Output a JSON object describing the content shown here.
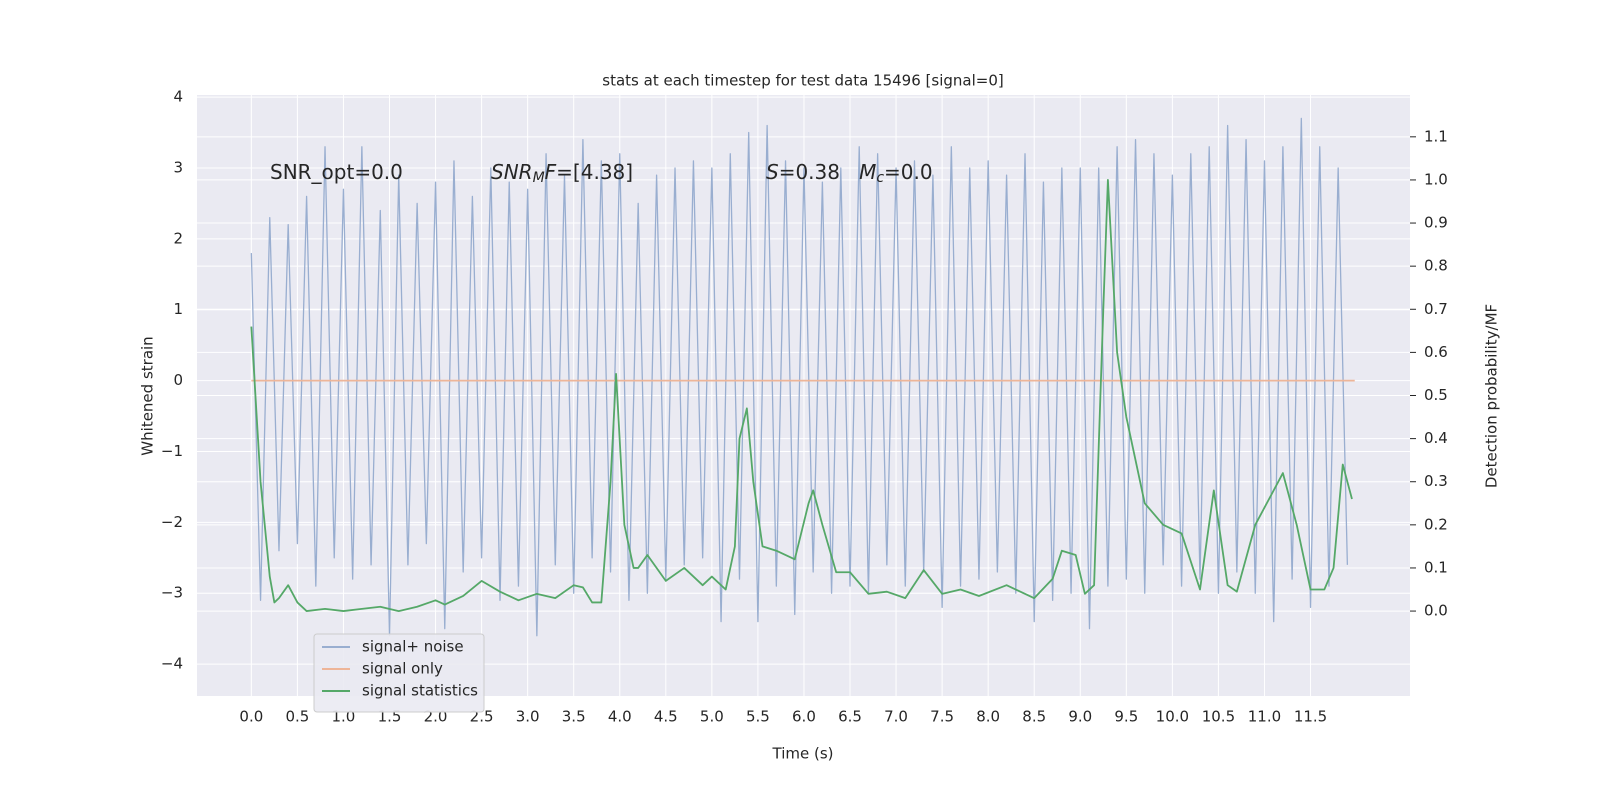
{
  "chart_data": {
    "type": "line",
    "title": "stats at each timestep for test data 15496 [signal=0]",
    "x_label": "Time (s)",
    "y_label": "Whitened strain",
    "y2_label": "Detection probability/MF",
    "xlim": [
      -0.59,
      12.58
    ],
    "ylim": [
      -4.45,
      4.03
    ],
    "y2lim": [
      -0.197,
      1.197
    ],
    "xticks": [
      {
        "value": 0,
        "label": "0.0"
      },
      {
        "value": 0.5,
        "label": "0.5"
      },
      {
        "value": 1,
        "label": "1.0"
      },
      {
        "value": 1.5,
        "label": "1.5"
      },
      {
        "value": 2,
        "label": "2.0"
      },
      {
        "value": 2.5,
        "label": "2.5"
      },
      {
        "value": 3,
        "label": "3.0"
      },
      {
        "value": 3.5,
        "label": "3.5"
      },
      {
        "value": 4,
        "label": "4.0"
      },
      {
        "value": 4.5,
        "label": "4.5"
      },
      {
        "value": 5,
        "label": "5.0"
      },
      {
        "value": 5.5,
        "label": "5.5"
      },
      {
        "value": 6,
        "label": "6.0"
      },
      {
        "value": 6.5,
        "label": "6.5"
      },
      {
        "value": 7,
        "label": "7.0"
      },
      {
        "value": 7.5,
        "label": "7.5"
      },
      {
        "value": 8,
        "label": "8.0"
      },
      {
        "value": 8.5,
        "label": "8.5"
      },
      {
        "value": 9,
        "label": "9.0"
      },
      {
        "value": 9.5,
        "label": "9.5"
      },
      {
        "value": 10,
        "label": "10.0"
      },
      {
        "value": 10.5,
        "label": "10.5"
      },
      {
        "value": 11,
        "label": "11.0"
      },
      {
        "value": 11.5,
        "label": "11.5"
      }
    ],
    "yticks": [
      {
        "value": -4,
        "label": "−4"
      },
      {
        "value": -3,
        "label": "−3"
      },
      {
        "value": -2,
        "label": "−2"
      },
      {
        "value": -1,
        "label": "−1"
      },
      0,
      1,
      2,
      3,
      4
    ],
    "y2ticks": [
      {
        "value": 0,
        "label": "0.0"
      },
      {
        "value": 0.1,
        "label": "0.1"
      },
      {
        "value": 0.2,
        "label": "0.2"
      },
      {
        "value": 0.3,
        "label": "0.3"
      },
      {
        "value": 0.4,
        "label": "0.4"
      },
      {
        "value": 0.5,
        "label": "0.5"
      },
      {
        "value": 0.6,
        "label": "0.6"
      },
      {
        "value": 0.7,
        "label": "0.7"
      },
      {
        "value": 0.8,
        "label": "0.8"
      },
      {
        "value": 0.9,
        "label": "0.9"
      },
      {
        "value": 1,
        "label": "1.0"
      },
      {
        "value": 1.1,
        "label": "1.1"
      }
    ],
    "grid": true,
    "legend": "lower left",
    "annotations": [
      [
        {
          "t": "SNR_opt=0.0",
          "s": ""
        }
      ],
      [
        {
          "t": "SNR",
          "s": "i"
        },
        {
          "t": "M",
          "s": "isub"
        },
        {
          "t": "F",
          "s": "i"
        },
        {
          "t": "=[4.38]",
          "s": ""
        }
      ],
      [
        {
          "t": "S",
          "s": "i"
        },
        {
          "t": "=0.38   ",
          "s": ""
        },
        {
          "t": "M",
          "s": "i"
        },
        {
          "t": "c",
          "s": "isub"
        },
        {
          "t": "=0.0",
          "s": ""
        }
      ]
    ],
    "series": [
      {
        "name": "signal+ noise",
        "color": "#99aed0",
        "x": [
          0,
          0.1,
          0.2,
          0.3,
          0.4,
          0.5,
          0.6,
          0.7,
          0.8,
          0.9,
          1,
          1.1,
          1.2,
          1.3,
          1.4,
          1.5,
          1.6,
          1.7,
          1.8,
          1.9,
          2,
          2.1,
          2.2,
          2.3,
          2.4,
          2.5,
          2.6,
          2.7,
          2.8,
          2.9,
          3,
          3.1,
          3.2,
          3.3,
          3.4,
          3.5,
          3.6,
          3.7,
          3.8,
          3.9,
          4,
          4.1,
          4.2,
          4.3,
          4.4,
          4.5,
          4.6,
          4.7,
          4.8,
          4.9,
          5,
          5.1,
          5.2,
          5.3,
          5.4,
          5.5,
          5.6,
          5.7,
          5.8,
          5.9,
          6,
          6.1,
          6.2,
          6.3,
          6.4,
          6.5,
          6.6,
          6.7,
          6.8,
          6.9,
          7,
          7.1,
          7.2,
          7.3,
          7.4,
          7.5,
          7.6,
          7.7,
          7.8,
          7.9,
          8,
          8.1,
          8.2,
          8.3,
          8.4,
          8.5,
          8.6,
          8.7,
          8.8,
          8.9,
          9,
          9.1,
          9.2,
          9.3,
          9.4,
          9.5,
          9.6,
          9.7,
          9.8,
          9.9,
          10,
          10.1,
          10.2,
          10.3,
          10.4,
          10.5,
          10.6,
          10.7,
          10.8,
          10.9,
          11,
          11.1,
          11.2,
          11.3,
          11.4,
          11.5,
          11.6,
          11.7,
          11.8,
          11.9
        ],
        "values": [
          1.8,
          -3.1,
          2.3,
          -2.4,
          2.2,
          -2.3,
          2.6,
          -2.9,
          3.3,
          -2.5,
          2.7,
          -2.8,
          3.3,
          -2.6,
          2.4,
          -3.6,
          2.9,
          -2.6,
          2.5,
          -2.3,
          2.8,
          -3.5,
          3.1,
          -2.7,
          2.6,
          -2.5,
          3.0,
          -3.1,
          2.8,
          -2.9,
          2.7,
          -3.6,
          3.2,
          -2.6,
          2.9,
          -3.0,
          3.4,
          -2.5,
          3.1,
          -2.7,
          3.2,
          -3.1,
          2.5,
          -3.0,
          2.9,
          -2.8,
          3.0,
          -2.6,
          3.1,
          -2.5,
          3.0,
          -3.4,
          3.2,
          -2.8,
          3.5,
          -3.4,
          3.6,
          -2.9,
          3.1,
          -3.3,
          3.0,
          -2.7,
          2.8,
          -3.0,
          3.0,
          -2.9,
          3.3,
          -3.0,
          3.2,
          -2.6,
          3.0,
          -2.9,
          3.1,
          -2.7,
          2.9,
          -3.2,
          3.3,
          -2.9,
          3.0,
          -2.8,
          3.1,
          -2.7,
          2.9,
          -3.0,
          3.2,
          -3.4,
          2.8,
          -3.1,
          3.0,
          -3.0,
          3.0,
          -3.5,
          3.0,
          -2.9,
          3.3,
          -2.8,
          3.4,
          -3.0,
          3.2,
          -2.6,
          2.9,
          -2.9,
          3.2,
          -2.8,
          3.3,
          -3.0,
          3.6,
          -2.7,
          3.4,
          -3.0,
          3.1,
          -3.4,
          3.3,
          -2.8,
          3.7,
          -3.2,
          3.3,
          -2.9,
          3.0,
          -2.6
        ]
      },
      {
        "name": "signal only",
        "color": "#eeb598",
        "x": [
          0,
          11.98
        ],
        "values": [
          0,
          0
        ]
      },
      {
        "name": "signal statistics",
        "color": "#55a868",
        "axis": "y2",
        "x": [
          0,
          0.1,
          0.2,
          0.25,
          0.3,
          0.4,
          0.5,
          0.6,
          0.8,
          1,
          1.2,
          1.4,
          1.6,
          1.8,
          2,
          2.1,
          2.3,
          2.5,
          2.7,
          2.9,
          3.1,
          3.3,
          3.5,
          3.6,
          3.7,
          3.8,
          3.9,
          3.96,
          4.05,
          4.15,
          4.2,
          4.3,
          4.5,
          4.7,
          4.9,
          5,
          5.15,
          5.25,
          5.3,
          5.38,
          5.45,
          5.55,
          5.7,
          5.9,
          6.05,
          6.1,
          6.2,
          6.35,
          6.5,
          6.7,
          6.9,
          7.1,
          7.3,
          7.5,
          7.7,
          7.9,
          8.2,
          8.5,
          8.7,
          8.8,
          8.95,
          9.05,
          9.15,
          9.25,
          9.3,
          9.4,
          9.5,
          9.7,
          9.9,
          10.1,
          10.3,
          10.45,
          10.6,
          10.7,
          10.9,
          11,
          11.2,
          11.35,
          11.5,
          11.65,
          11.75,
          11.85,
          11.95
        ],
        "values": [
          0.66,
          0.3,
          0.08,
          0.02,
          0.03,
          0.06,
          0.02,
          0,
          0.005,
          0,
          0.005,
          0.01,
          0,
          0.01,
          0.025,
          0.015,
          0.035,
          0.07,
          0.045,
          0.025,
          0.04,
          0.03,
          0.06,
          0.055,
          0.02,
          0.02,
          0.3,
          0.55,
          0.2,
          0.1,
          0.1,
          0.13,
          0.07,
          0.1,
          0.06,
          0.08,
          0.05,
          0.15,
          0.4,
          0.47,
          0.3,
          0.15,
          0.14,
          0.12,
          0.25,
          0.28,
          0.2,
          0.09,
          0.09,
          0.04,
          0.045,
          0.03,
          0.095,
          0.04,
          0.05,
          0.035,
          0.06,
          0.03,
          0.075,
          0.14,
          0.13,
          0.04,
          0.06,
          0.7,
          1.0,
          0.6,
          0.45,
          0.25,
          0.2,
          0.18,
          0.05,
          0.28,
          0.06,
          0.045,
          0.2,
          0.24,
          0.32,
          0.2,
          0.05,
          0.05,
          0.1,
          0.34,
          0.26
        ]
      }
    ]
  }
}
